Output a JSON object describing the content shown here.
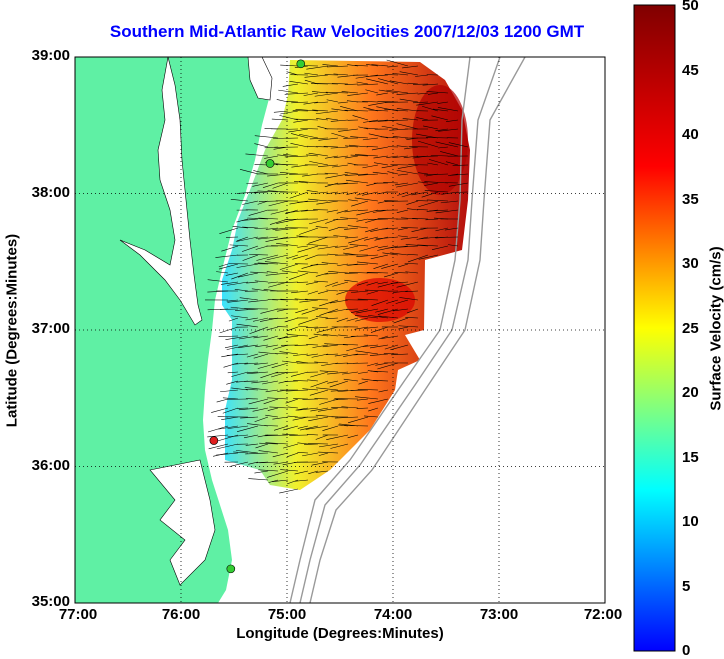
{
  "title": "Southern Mid-Atlantic Raw Velocities 2007/12/03 1200 GMT",
  "xlabel": "Longitude (Degrees:Minutes)",
  "ylabel": "Latitude (Degrees:Minutes)",
  "colorbar_label": "Surface Velocity (cm/s)",
  "x_ticks": [
    "77:00",
    "76:00",
    "75:00",
    "74:00",
    "73:00",
    "72:00"
  ],
  "y_ticks": [
    "39:00",
    "38:00",
    "37:00",
    "36:00",
    "35:00"
  ],
  "colorbar_ticks": [
    "50",
    "45",
    "40",
    "35",
    "30",
    "25",
    "20",
    "15",
    "10",
    "5",
    "0"
  ],
  "colors": {
    "title": "#0000ff",
    "land": "#5ff0a4",
    "grid": "#000000",
    "bathymetry": "#999999",
    "station_green": "#33cc33",
    "station_red": "#e02020"
  },
  "chart_data": {
    "type": "heatmap",
    "xlim": [
      -77,
      -72
    ],
    "ylim": [
      35,
      39
    ],
    "clim": [
      0,
      50
    ],
    "grid": true,
    "colorbar": "right",
    "colormap": "jet",
    "stations": [
      {
        "lon": -74.87,
        "lat": 38.95,
        "color": "green"
      },
      {
        "lon": -75.16,
        "lat": 38.22,
        "color": "green"
      },
      {
        "lon": -75.69,
        "lat": 36.19,
        "color": "red"
      },
      {
        "lon": -75.53,
        "lat": 35.25,
        "color": "green"
      }
    ]
  }
}
